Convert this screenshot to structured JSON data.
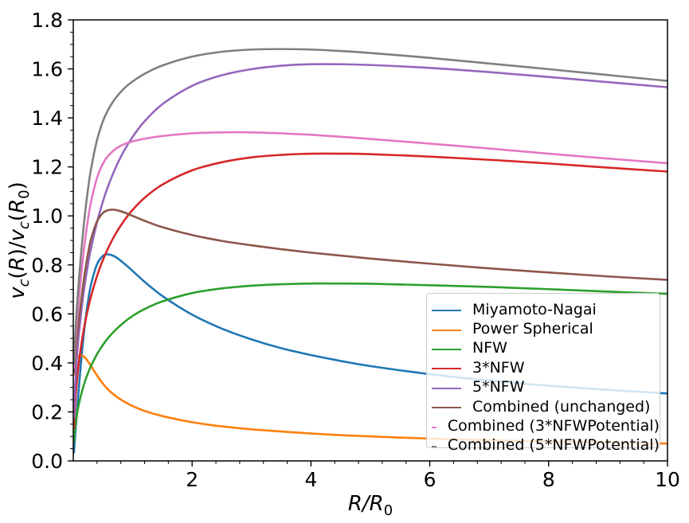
{
  "figure": {
    "background": "#ffffff",
    "plot_background": "#ffffff",
    "spine_color": "#000000"
  },
  "chart_data": {
    "type": "line",
    "title": "",
    "xlabel": "R/R_0",
    "ylabel": "v_c(R)/v_c(R_0)",
    "xlim": [
      0,
      10
    ],
    "ylim": [
      0.0,
      1.8
    ],
    "grid": false,
    "legend_position": "lower right",
    "x_axis": {
      "major_ticks": [
        2,
        4,
        6,
        8,
        10
      ],
      "major_tick_labels": [
        "2",
        "4",
        "6",
        "8",
        "10"
      ],
      "minor_tick_step": 0.4
    },
    "y_axis": {
      "major_ticks": [
        0.0,
        0.2,
        0.4,
        0.6,
        0.8,
        1.0,
        1.2,
        1.4,
        1.6,
        1.8
      ],
      "major_tick_labels": [
        "0.0",
        "0.2",
        "0.4",
        "0.6",
        "0.8",
        "1.0",
        "1.2",
        "1.4",
        "1.6",
        "1.8"
      ],
      "minor_tick_step": 0.05
    },
    "x": [
      0.01,
      0.02,
      0.04,
      0.07,
      0.1,
      0.15,
      0.2,
      0.25,
      0.3,
      0.4,
      0.5,
      0.58,
      0.7,
      0.85,
      1,
      1.2,
      1.5,
      2,
      2.5,
      3,
      3.5,
      4,
      4.5,
      5,
      6,
      7,
      8,
      9,
      10
    ],
    "series": [
      {
        "name": "Miyamoto-Nagai",
        "color": "#1f77b4",
        "values": [
          0.033,
          0.066,
          0.132,
          0.227,
          0.317,
          0.453,
          0.565,
          0.654,
          0.721,
          0.803,
          0.837,
          0.843,
          0.834,
          0.807,
          0.775,
          0.731,
          0.673,
          0.597,
          0.54,
          0.496,
          0.46,
          0.432,
          0.408,
          0.387,
          0.354,
          0.328,
          0.307,
          0.29,
          0.275
        ]
      },
      {
        "name": "Power Spherical",
        "color": "#ff7f0e",
        "values": [
          0.353,
          0.379,
          0.404,
          0.422,
          0.429,
          0.43,
          0.421,
          0.405,
          0.387,
          0.349,
          0.315,
          0.293,
          0.267,
          0.243,
          0.224,
          0.204,
          0.183,
          0.158,
          0.141,
          0.129,
          0.12,
          0.112,
          0.105,
          0.1,
          0.091,
          0.085,
          0.079,
          0.075,
          0.071
        ]
      },
      {
        "name": "NFW",
        "color": "#2ca02c",
        "values": [
          0.078,
          0.109,
          0.154,
          0.201,
          0.238,
          0.287,
          0.327,
          0.36,
          0.388,
          0.436,
          0.474,
          0.5,
          0.532,
          0.565,
          0.592,
          0.62,
          0.651,
          0.685,
          0.704,
          0.715,
          0.721,
          0.724,
          0.724,
          0.723,
          0.717,
          0.71,
          0.701,
          0.691,
          0.682
        ]
      },
      {
        "name": "3*NFW",
        "color": "#d62728",
        "values": [
          0.134,
          0.189,
          0.266,
          0.348,
          0.413,
          0.498,
          0.566,
          0.623,
          0.673,
          0.755,
          0.821,
          0.865,
          0.922,
          0.979,
          1.025,
          1.074,
          1.128,
          1.186,
          1.219,
          1.239,
          1.249,
          1.254,
          1.254,
          1.252,
          1.242,
          1.229,
          1.214,
          1.197,
          1.181
        ]
      },
      {
        "name": "5*NFW",
        "color": "#9467bd",
        "values": [
          0.174,
          0.245,
          0.344,
          0.45,
          0.533,
          0.643,
          0.731,
          0.805,
          0.869,
          0.974,
          1.06,
          1.117,
          1.19,
          1.264,
          1.323,
          1.386,
          1.456,
          1.531,
          1.574,
          1.599,
          1.613,
          1.619,
          1.619,
          1.616,
          1.604,
          1.587,
          1.567,
          1.546,
          1.525
        ]
      },
      {
        "name": "Combined (unchanged)",
        "color": "#8c564b",
        "values": [
          0.363,
          0.4,
          0.452,
          0.519,
          0.585,
          0.687,
          0.777,
          0.849,
          0.906,
          0.978,
          1.012,
          1.023,
          1.025,
          1.015,
          1.0,
          0.98,
          0.954,
          0.922,
          0.898,
          0.88,
          0.864,
          0.85,
          0.838,
          0.826,
          0.805,
          0.786,
          0.769,
          0.753,
          0.739
        ]
      },
      {
        "name": "Combined (3*NFWPotential)",
        "color": "#e377c2",
        "values": [
          0.38,
          0.429,
          0.502,
          0.592,
          0.675,
          0.798,
          0.904,
          0.99,
          1.059,
          1.156,
          1.214,
          1.243,
          1.271,
          1.292,
          1.304,
          1.315,
          1.326,
          1.337,
          1.341,
          1.341,
          1.337,
          1.331,
          1.323,
          1.314,
          1.295,
          1.275,
          1.254,
          1.234,
          1.215
        ]
      },
      {
        "name": "Combined (5*NFWPotential)",
        "color": "#7f7f7f",
        "values": [
          0.395,
          0.456,
          0.547,
          0.657,
          0.754,
          0.896,
          1.015,
          1.113,
          1.193,
          1.31,
          1.387,
          1.43,
          1.477,
          1.519,
          1.549,
          1.58,
          1.614,
          1.65,
          1.67,
          1.679,
          1.681,
          1.679,
          1.673,
          1.665,
          1.645,
          1.622,
          1.599,
          1.575,
          1.551
        ]
      }
    ],
    "xlabel_segments": [
      {
        "t": "R",
        "italic": true
      },
      {
        "t": "/",
        "italic": true
      },
      {
        "t": "R",
        "italic": true
      },
      {
        "t": "0",
        "sub": true
      }
    ],
    "ylabel_segments": [
      {
        "t": "v",
        "italic": true
      },
      {
        "t": "c",
        "italic": true,
        "sub": true
      },
      {
        "t": "(",
        "italic": false
      },
      {
        "t": "R",
        "italic": true
      },
      {
        "t": ")/",
        "italic": false
      },
      {
        "t": "v",
        "italic": true
      },
      {
        "t": "c",
        "italic": true,
        "sub": true
      },
      {
        "t": "(",
        "italic": false
      },
      {
        "t": "R",
        "italic": true
      },
      {
        "t": "0",
        "sub": true
      },
      {
        "t": ")",
        "italic": false
      }
    ]
  }
}
